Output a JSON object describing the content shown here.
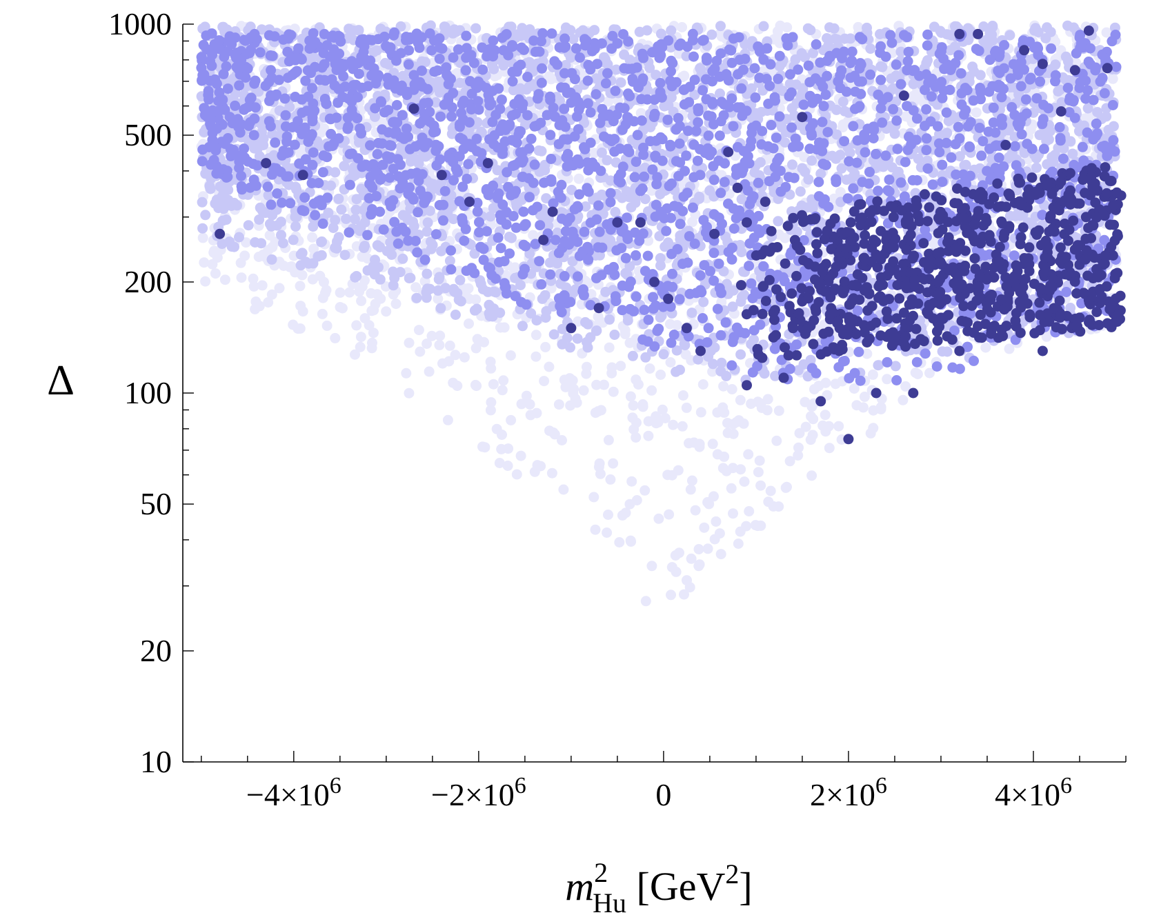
{
  "chart_data": {
    "type": "scatter",
    "title": "",
    "xlabel": {
      "symbol": "m",
      "superscript": "2",
      "subscript": "Hu",
      "unit_open": " [GeV",
      "unit_sup": "2",
      "unit_close": "]"
    },
    "ylabel": "Δ",
    "xlim": [
      -5200000,
      5000000
    ],
    "ylim": [
      10,
      1000
    ],
    "yscale": "log",
    "x_ticks": [
      {
        "value": -4000000,
        "mantissa": "−4×10",
        "exp": "6"
      },
      {
        "value": -2000000,
        "mantissa": "−2×10",
        "exp": "6"
      },
      {
        "value": 0,
        "mantissa": "0",
        "exp": ""
      },
      {
        "value": 2000000,
        "mantissa": "2×10",
        "exp": "6"
      },
      {
        "value": 4000000,
        "mantissa": "4×10",
        "exp": "6"
      }
    ],
    "y_ticks": [
      {
        "value": 1000,
        "label": "1000"
      },
      {
        "value": 500,
        "label": "500"
      },
      {
        "value": 200,
        "label": "200"
      },
      {
        "value": 100,
        "label": "100"
      },
      {
        "value": 50,
        "label": "50"
      },
      {
        "value": 20,
        "label": "20"
      },
      {
        "value": 10,
        "label": "10"
      }
    ],
    "series": [
      {
        "name": "lightest",
        "color": "#e8e8fb",
        "region": [
          {
            "x": -5000000,
            "ylo": 190,
            "yhi": 1000
          },
          {
            "x": -4000000,
            "ylo": 150,
            "yhi": 1000
          },
          {
            "x": -3000000,
            "ylo": 110,
            "yhi": 1000
          },
          {
            "x": -2000000,
            "ylo": 70,
            "yhi": 1000
          },
          {
            "x": -1000000,
            "ylo": 42,
            "yhi": 1000
          },
          {
            "x": 0,
            "ylo": 24,
            "yhi": 1000
          },
          {
            "x": 1000000,
            "ylo": 42,
            "yhi": 1000
          },
          {
            "x": 2000000,
            "ylo": 70,
            "yhi": 1000
          },
          {
            "x": 3000000,
            "ylo": 105,
            "yhi": 1000
          },
          {
            "x": 4000000,
            "ylo": 135,
            "yhi": 1000
          },
          {
            "x": 4900000,
            "ylo": 150,
            "yhi": 1000
          }
        ],
        "count": 2000
      },
      {
        "name": "light",
        "color": "#c8c8f7",
        "region": [
          {
            "x": -5000000,
            "ylo": 260,
            "yhi": 1000
          },
          {
            "x": -4000000,
            "ylo": 220,
            "yhi": 1000
          },
          {
            "x": -3000000,
            "ylo": 190,
            "yhi": 1000
          },
          {
            "x": -2000000,
            "ylo": 150,
            "yhi": 1000
          },
          {
            "x": -1000000,
            "ylo": 130,
            "yhi": 1000
          },
          {
            "x": 0,
            "ylo": 110,
            "yhi": 1000
          },
          {
            "x": 1000000,
            "ylo": 105,
            "yhi": 1000
          },
          {
            "x": 2000000,
            "ylo": 110,
            "yhi": 1000
          },
          {
            "x": 3000000,
            "ylo": 120,
            "yhi": 1000
          },
          {
            "x": 4000000,
            "ylo": 135,
            "yhi": 1000
          },
          {
            "x": 4900000,
            "ylo": 150,
            "yhi": 1000
          }
        ],
        "count": 2600
      },
      {
        "name": "medium",
        "color": "#8e8ef0",
        "region": [
          {
            "x": -5000000,
            "ylo": 380,
            "yhi": 950
          },
          {
            "x": -4000000,
            "ylo": 300,
            "yhi": 950
          },
          {
            "x": -3000000,
            "ylo": 250,
            "yhi": 950
          },
          {
            "x": -2000000,
            "ylo": 200,
            "yhi": 950
          },
          {
            "x": -1000000,
            "ylo": 150,
            "yhi": 950
          },
          {
            "x": 0,
            "ylo": 125,
            "yhi": 950
          },
          {
            "x": 1000000,
            "ylo": 110,
            "yhi": 950
          },
          {
            "x": 2000000,
            "ylo": 105,
            "yhi": 950
          },
          {
            "x": 3000000,
            "ylo": 110,
            "yhi": 950
          },
          {
            "x": 4000000,
            "ylo": 140,
            "yhi": 950
          },
          {
            "x": 4900000,
            "ylo": 150,
            "yhi": 950
          }
        ],
        "count": 1900
      },
      {
        "name": "dark",
        "color": "#3e3c94",
        "points": [
          [
            -4300000,
            420
          ],
          [
            -4800000,
            270
          ],
          [
            -3900000,
            390
          ],
          [
            -2400000,
            390
          ],
          [
            -1900000,
            420
          ],
          [
            -2100000,
            330
          ],
          [
            -2700000,
            590
          ],
          [
            -500000,
            290
          ],
          [
            -1300000,
            260
          ],
          [
            -1200000,
            310
          ],
          [
            -1000000,
            150
          ],
          [
            -700000,
            170
          ],
          [
            -250000,
            290
          ],
          [
            -100000,
            200
          ],
          [
            50000,
            180
          ],
          [
            250000,
            150
          ],
          [
            400000,
            130
          ],
          [
            700000,
            450
          ],
          [
            800000,
            360
          ],
          [
            550000,
            270
          ],
          [
            900000,
            290
          ],
          [
            1100000,
            330
          ],
          [
            1500000,
            560
          ],
          [
            1450000,
            250
          ],
          [
            1400000,
            150
          ],
          [
            900000,
            105
          ],
          [
            1300000,
            110
          ],
          [
            1700000,
            95
          ],
          [
            2000000,
            75
          ],
          [
            2300000,
            100
          ],
          [
            2700000,
            100
          ],
          [
            2600000,
            640
          ],
          [
            3200000,
            940
          ],
          [
            3400000,
            940
          ],
          [
            3900000,
            850
          ],
          [
            4100000,
            780
          ],
          [
            4450000,
            750
          ],
          [
            4600000,
            960
          ],
          [
            4800000,
            760
          ],
          [
            4300000,
            580
          ],
          [
            3700000,
            470
          ],
          [
            4100000,
            130
          ],
          [
            4500000,
            160
          ],
          [
            1900000,
            130
          ],
          [
            2600000,
            165
          ],
          [
            3200000,
            130
          ]
        ],
        "cluster": {
          "xmin": 800000,
          "xmax": 4950000,
          "ylo_left": 120,
          "yhi": 420,
          "count": 900
        }
      }
    ]
  }
}
